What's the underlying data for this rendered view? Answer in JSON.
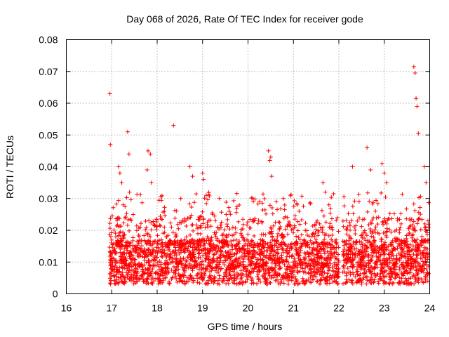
{
  "chart_data": {
    "type": "scatter",
    "title": "Day 068 of 2026, Rate Of TEC Index for receiver gode",
    "xlabel": "GPS time / hours",
    "ylabel": "ROTI / TECUs",
    "xlim": [
      16,
      24
    ],
    "ylim": [
      0,
      0.08
    ],
    "xticks": [
      "16",
      "17",
      "18",
      "19",
      "20",
      "21",
      "22",
      "23",
      "24"
    ],
    "yticks": [
      "0",
      "0.01",
      "0.02",
      "0.03",
      "0.04",
      "0.05",
      "0.06",
      "0.07",
      "0.08"
    ],
    "grid": true,
    "marker": "+",
    "color": "#ff0000",
    "data_gap_hours": [
      22.0,
      22.08
    ],
    "series": [
      {
        "name": "ROTI",
        "x": [
          16.96,
          16.97,
          16.98,
          17.15,
          17.18,
          17.22,
          17.25,
          17.35,
          17.38,
          17.78,
          17.8,
          17.85,
          17.87,
          18.36,
          18.52,
          18.72,
          18.78,
          19.0,
          19.02,
          19.08,
          20.45,
          20.48,
          20.5,
          20.52,
          20.78,
          21.08,
          21.65,
          21.7,
          21.78,
          22.3,
          22.62,
          22.7,
          22.95,
          23.0,
          23.05,
          23.65,
          23.68,
          23.7,
          23.72,
          23.75,
          23.88,
          23.92
        ],
        "y": [
          0.063,
          0.047,
          0.018,
          0.04,
          0.038,
          0.035,
          0.028,
          0.051,
          0.044,
          0.039,
          0.045,
          0.044,
          0.035,
          0.053,
          0.03,
          0.04,
          0.037,
          0.038,
          0.036,
          0.031,
          0.045,
          0.042,
          0.043,
          0.037,
          0.03,
          0.028,
          0.035,
          0.032,
          0.028,
          0.04,
          0.046,
          0.039,
          0.041,
          0.038,
          0.035,
          0.0715,
          0.0695,
          0.0615,
          0.059,
          0.0505,
          0.04,
          0.035
        ]
      }
    ],
    "note": "Dense cluster of ROTI values roughly 0.003-0.03 TECUs between 16.95h and 24h"
  }
}
